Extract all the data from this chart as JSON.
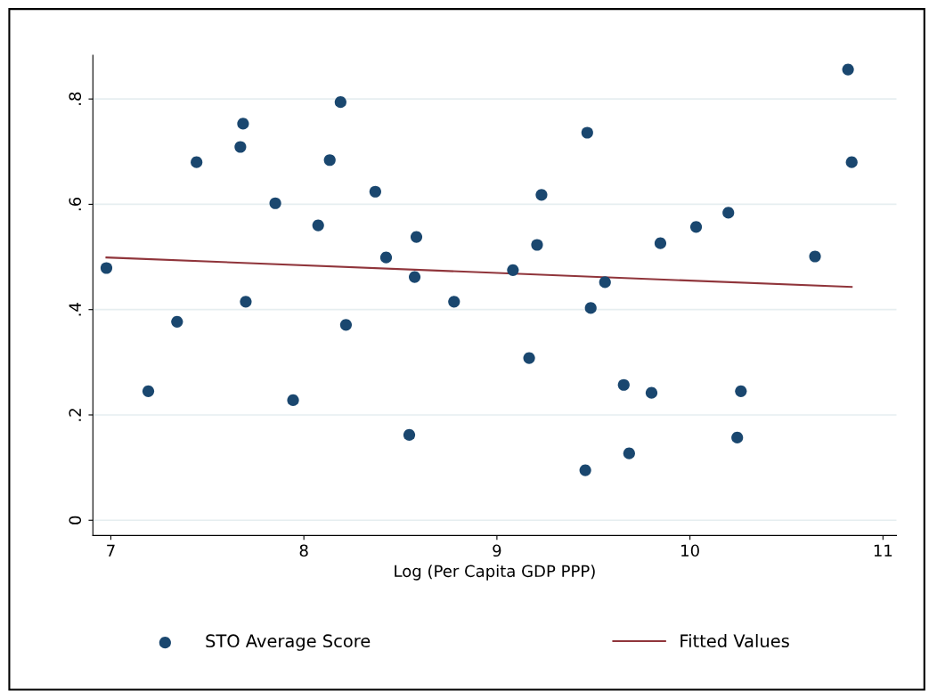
{
  "chart_data": {
    "type": "scatter",
    "xlabel": "Log (Per Capita GDP PPP)",
    "xlim": [
      6.907,
      11.07
    ],
    "xticks": [
      7,
      8,
      9,
      10,
      11
    ],
    "ylim": [
      -0.029,
      0.883
    ],
    "yticks": [
      {
        "value": 0,
        "label": "0"
      },
      {
        "value": 0.2,
        "label": ".2"
      },
      {
        "value": 0.4,
        "label": ".4"
      },
      {
        "value": 0.6,
        "label": ".6"
      },
      {
        "value": 0.8,
        "label": ".8"
      }
    ],
    "grid": "y",
    "legend": "bottom",
    "series": [
      {
        "name": "STO Average Score",
        "marker": "circle",
        "color": "#1a476f",
        "x": [
          6.977,
          7.194,
          7.343,
          7.444,
          7.671,
          7.685,
          7.699,
          7.852,
          7.944,
          8.074,
          8.134,
          8.19,
          8.218,
          8.37,
          8.426,
          8.546,
          8.574,
          8.583,
          8.778,
          9.083,
          9.167,
          9.208,
          9.231,
          9.458,
          9.468,
          9.486,
          9.56,
          9.657,
          9.685,
          9.801,
          9.847,
          10.032,
          10.199,
          10.245,
          10.264,
          10.648,
          10.819,
          10.838
        ],
        "values": [
          0.479,
          0.245,
          0.377,
          0.68,
          0.709,
          0.753,
          0.415,
          0.602,
          0.228,
          0.56,
          0.684,
          0.794,
          0.371,
          0.624,
          0.499,
          0.162,
          0.462,
          0.538,
          0.415,
          0.475,
          0.308,
          0.523,
          0.618,
          0.095,
          0.736,
          0.403,
          0.452,
          0.257,
          0.127,
          0.242,
          0.526,
          0.557,
          0.584,
          0.157,
          0.245,
          0.501,
          0.856,
          0.68
        ]
      },
      {
        "name": "Fitted Values",
        "type": "line",
        "color": "#90353b",
        "x": [
          6.977,
          10.838
        ],
        "values": [
          0.499,
          0.443
        ]
      }
    ]
  }
}
